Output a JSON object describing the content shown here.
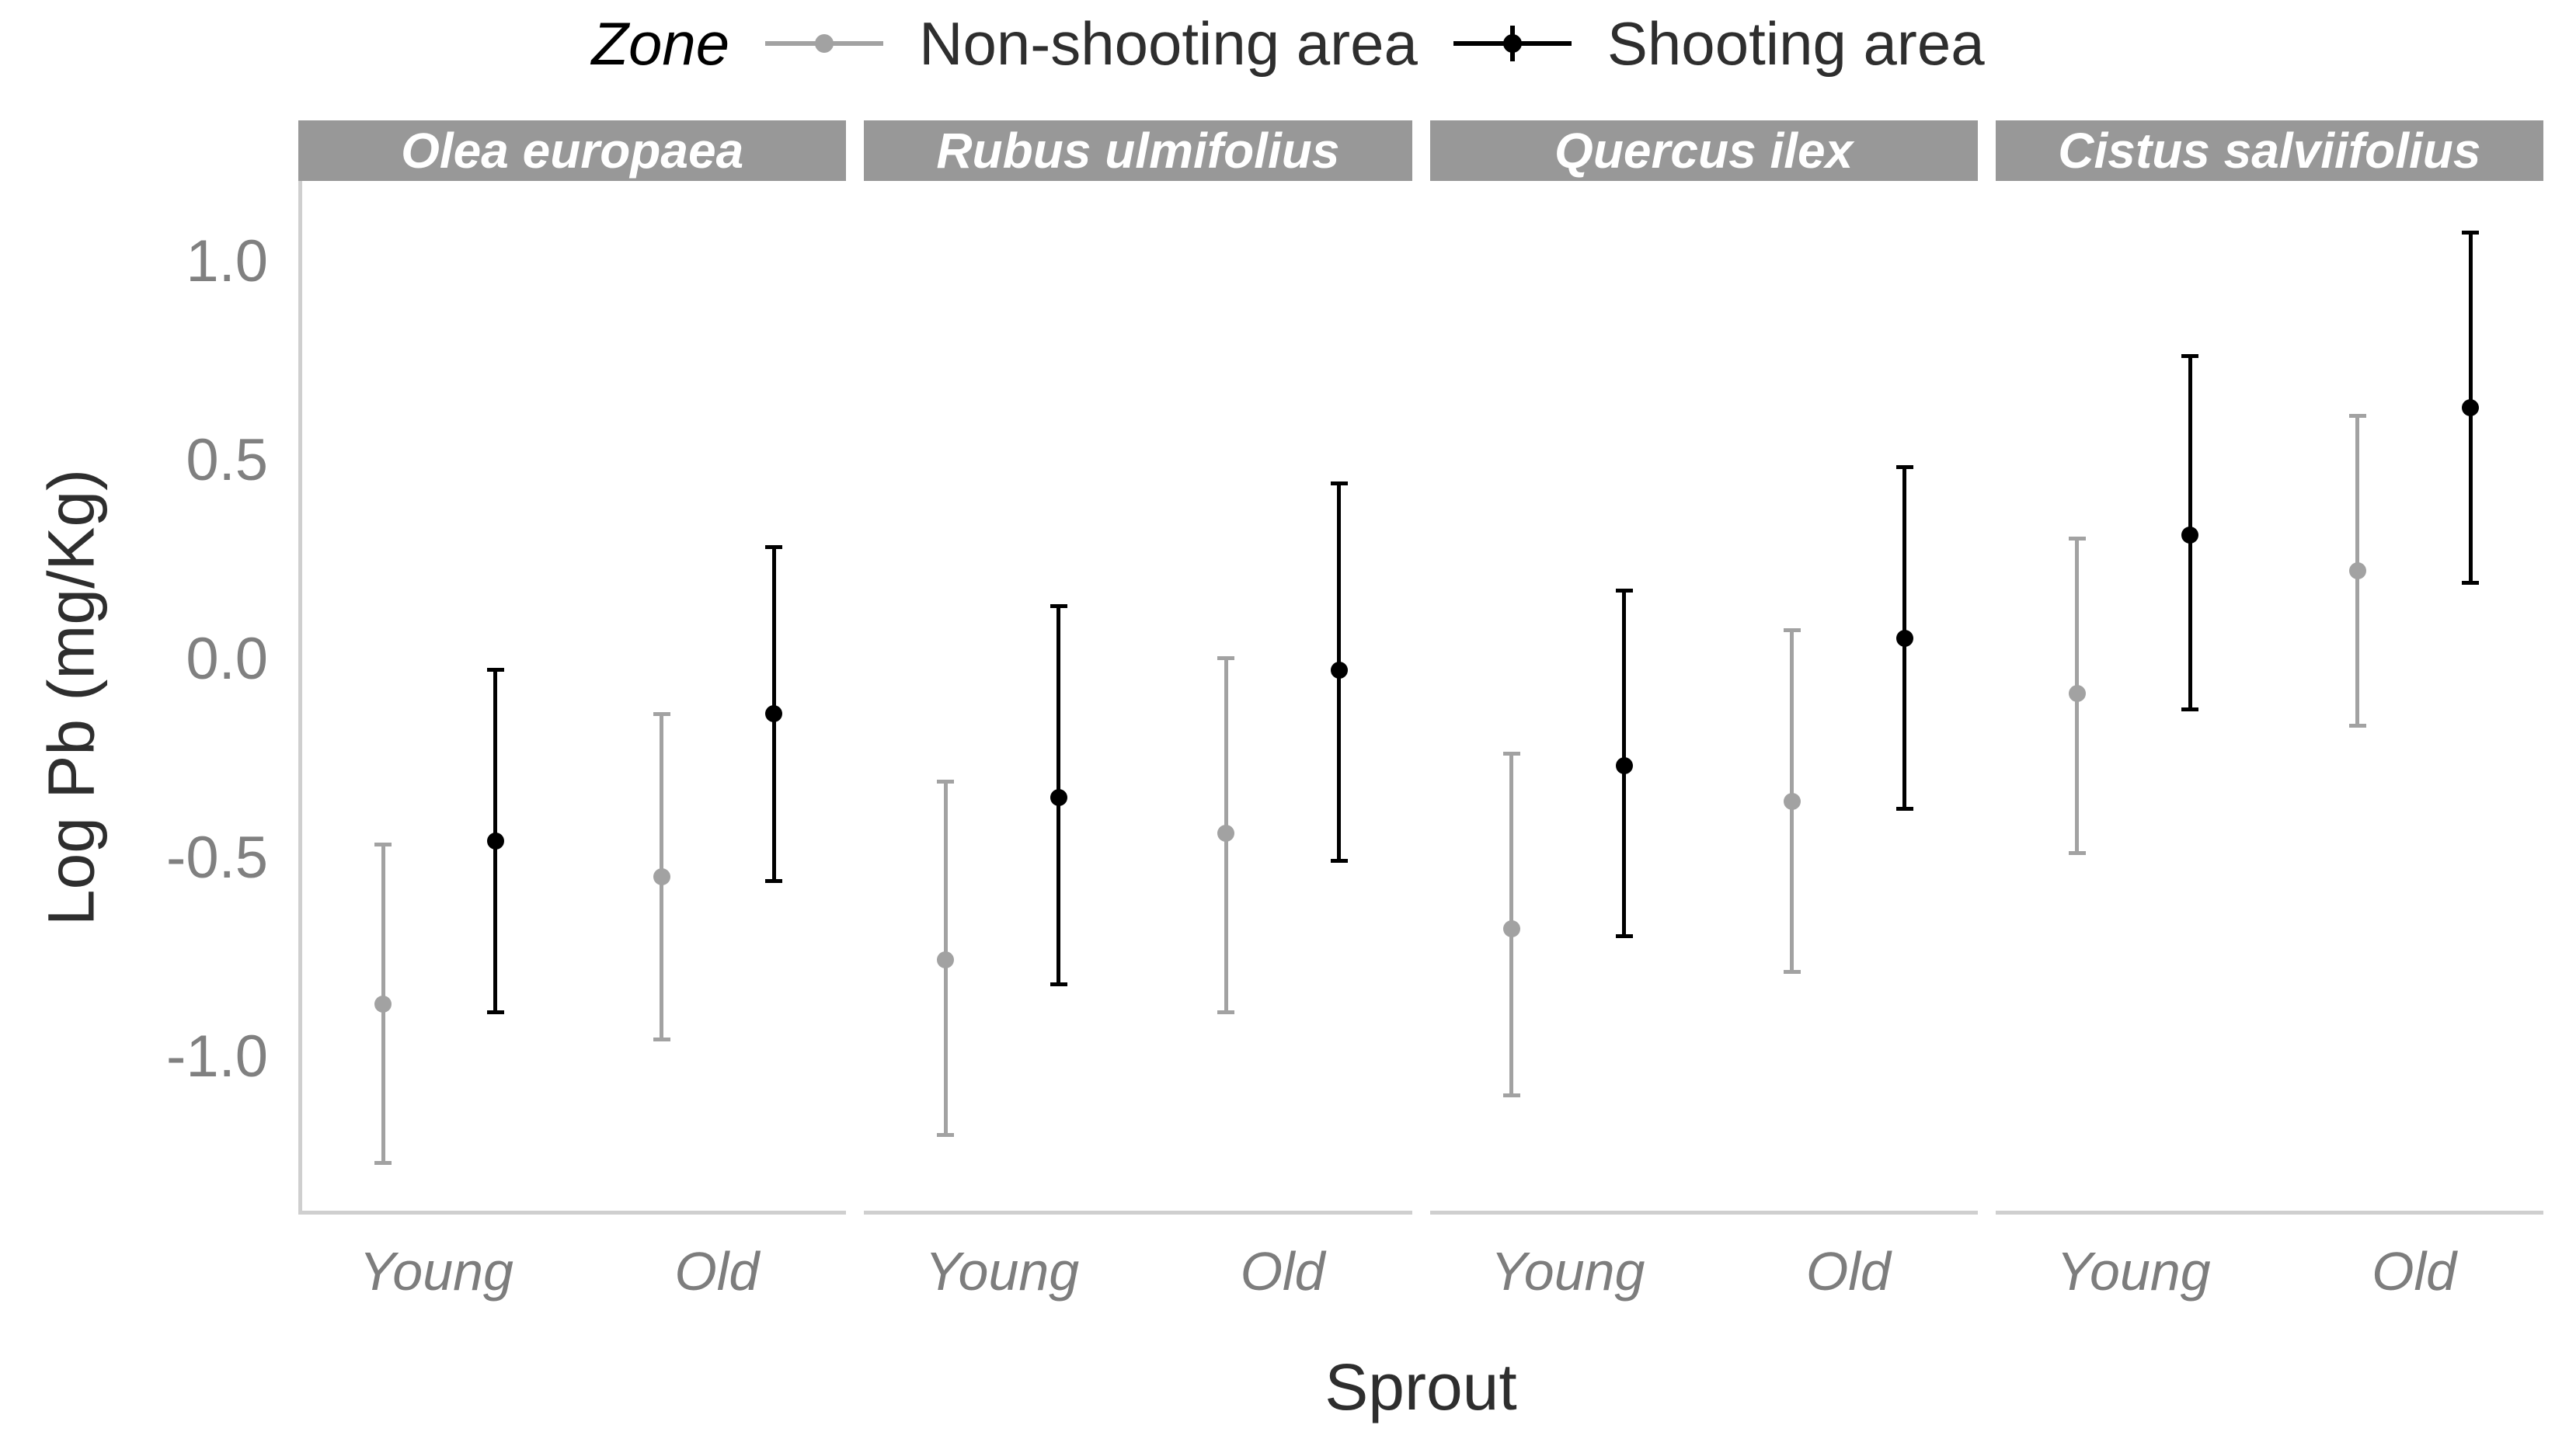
{
  "chart_data": {
    "type": "pointrange",
    "title": "",
    "xlabel": "Sprout",
    "ylabel": "Log Pb (mg/Kg)",
    "ylim": [
      -1.39,
      1.2
    ],
    "yticks": [
      1.0,
      0.5,
      0.0,
      -0.5,
      -1.0
    ],
    "ytick_labels": [
      "1.0",
      "0.5",
      "0.0",
      "-0.5",
      "-1.0"
    ],
    "categories": [
      "Young",
      "Old"
    ],
    "x_centers_pct": [
      25.2,
      76.4
    ],
    "dodge_pct": 10.3,
    "grid": false,
    "legend": {
      "title": "Zone",
      "position": "top-center",
      "entries": [
        {
          "label": "Non-shooting area",
          "color": "#a2a2a2"
        },
        {
          "label": "Shooting area",
          "color": "#000000"
        }
      ]
    },
    "facets": [
      {
        "label": "Olea europaea",
        "points": [
          {
            "zone": "Non-shooting area",
            "sprout": "Young",
            "mean": -0.87,
            "lo": -1.27,
            "hi": -0.47
          },
          {
            "zone": "Shooting area",
            "sprout": "Young",
            "mean": -0.46,
            "lo": -0.89,
            "hi": -0.03
          },
          {
            "zone": "Non-shooting area",
            "sprout": "Old",
            "mean": -0.55,
            "lo": -0.96,
            "hi": -0.14
          },
          {
            "zone": "Shooting area",
            "sprout": "Old",
            "mean": -0.14,
            "lo": -0.56,
            "hi": 0.28
          }
        ]
      },
      {
        "label": "Rubus ulmifolius",
        "points": [
          {
            "zone": "Non-shooting area",
            "sprout": "Young",
            "mean": -0.76,
            "lo": -1.2,
            "hi": -0.31
          },
          {
            "zone": "Shooting area",
            "sprout": "Young",
            "mean": -0.35,
            "lo": -0.82,
            "hi": 0.13
          },
          {
            "zone": "Non-shooting area",
            "sprout": "Old",
            "mean": -0.44,
            "lo": -0.89,
            "hi": 0.0
          },
          {
            "zone": "Shooting area",
            "sprout": "Old",
            "mean": -0.03,
            "lo": -0.51,
            "hi": 0.44
          }
        ]
      },
      {
        "label": "Quercus ilex",
        "points": [
          {
            "zone": "Non-shooting area",
            "sprout": "Young",
            "mean": -0.68,
            "lo": -1.1,
            "hi": -0.24
          },
          {
            "zone": "Shooting area",
            "sprout": "Young",
            "mean": -0.27,
            "lo": -0.7,
            "hi": 0.17
          },
          {
            "zone": "Non-shooting area",
            "sprout": "Old",
            "mean": -0.36,
            "lo": -0.79,
            "hi": 0.07
          },
          {
            "zone": "Shooting area",
            "sprout": "Old",
            "mean": 0.05,
            "lo": -0.38,
            "hi": 0.48
          }
        ]
      },
      {
        "label": "Cistus salviifolius",
        "points": [
          {
            "zone": "Non-shooting area",
            "sprout": "Young",
            "mean": -0.09,
            "lo": -0.49,
            "hi": 0.3
          },
          {
            "zone": "Shooting area",
            "sprout": "Young",
            "mean": 0.31,
            "lo": -0.13,
            "hi": 0.76
          },
          {
            "zone": "Non-shooting area",
            "sprout": "Old",
            "mean": 0.22,
            "lo": -0.17,
            "hi": 0.61
          },
          {
            "zone": "Shooting area",
            "sprout": "Old",
            "mean": 0.63,
            "lo": 0.19,
            "hi": 1.07
          }
        ]
      }
    ],
    "colors": {
      "strip_background": "#989898",
      "strip_text": "#ffffff",
      "axis_line": "#cfcfcf",
      "tick_text": "#808080",
      "axis_title_text": "#2e2e2e",
      "panel_background": "#ffffff"
    }
  }
}
